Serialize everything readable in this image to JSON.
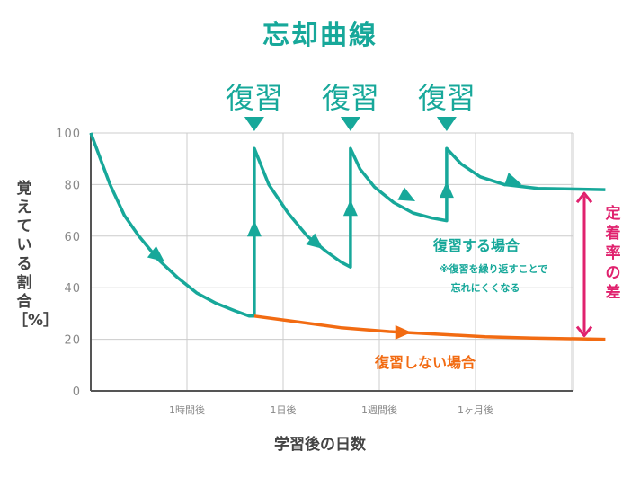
{
  "title": "忘却曲線",
  "colors": {
    "review": "#17a89a",
    "noreview": "#f26b12",
    "gap": "#e0226e",
    "grid": "#cccccc",
    "axis": "#555555",
    "tick": "#888888"
  },
  "chart_data": {
    "type": "line",
    "title": "忘却曲線",
    "xlabel": "学習後の日数",
    "ylabel": "覚えている割合［%］",
    "ylim": [
      0,
      100
    ],
    "yticks": [
      0,
      20,
      40,
      60,
      80,
      100
    ],
    "xtick_labels": [
      "1時間後",
      "1日後",
      "1週間後",
      "1ヶ月後"
    ],
    "grid": true,
    "series": [
      {
        "name": "復習する場合",
        "note": "※復習を繰り返すことで\n忘れにくくなる",
        "points": [
          [
            0,
            100
          ],
          [
            0.4,
            80
          ],
          [
            0.7,
            68
          ],
          [
            1,
            60
          ],
          [
            1.4,
            51
          ],
          [
            1.8,
            44
          ],
          [
            2.2,
            38
          ],
          [
            2.6,
            34
          ],
          [
            3,
            31
          ],
          [
            3.3,
            29
          ],
          [
            3.4,
            29
          ],
          [
            3.4,
            94
          ],
          [
            3.7,
            80
          ],
          [
            4.1,
            69
          ],
          [
            4.5,
            60
          ],
          [
            4.9,
            54
          ],
          [
            5.2,
            50
          ],
          [
            5.4,
            48
          ],
          [
            5.4,
            94
          ],
          [
            5.6,
            86
          ],
          [
            5.9,
            79
          ],
          [
            6.3,
            73
          ],
          [
            6.7,
            69
          ],
          [
            7.1,
            67
          ],
          [
            7.4,
            66
          ],
          [
            7.4,
            94
          ],
          [
            7.7,
            88
          ],
          [
            8.1,
            83
          ],
          [
            8.6,
            80
          ],
          [
            9.3,
            78.5
          ],
          [
            10.7,
            78
          ]
        ]
      },
      {
        "name": "復習しない場合",
        "points": [
          [
            3.4,
            29
          ],
          [
            4.2,
            27
          ],
          [
            5.2,
            24.5
          ],
          [
            6.2,
            23
          ],
          [
            7.2,
            22
          ],
          [
            8.2,
            21
          ],
          [
            9.2,
            20.5
          ],
          [
            10.7,
            20
          ]
        ]
      }
    ],
    "review_markers": [
      "復習",
      "復習",
      "復習"
    ],
    "gap_label": "定着率の差"
  }
}
